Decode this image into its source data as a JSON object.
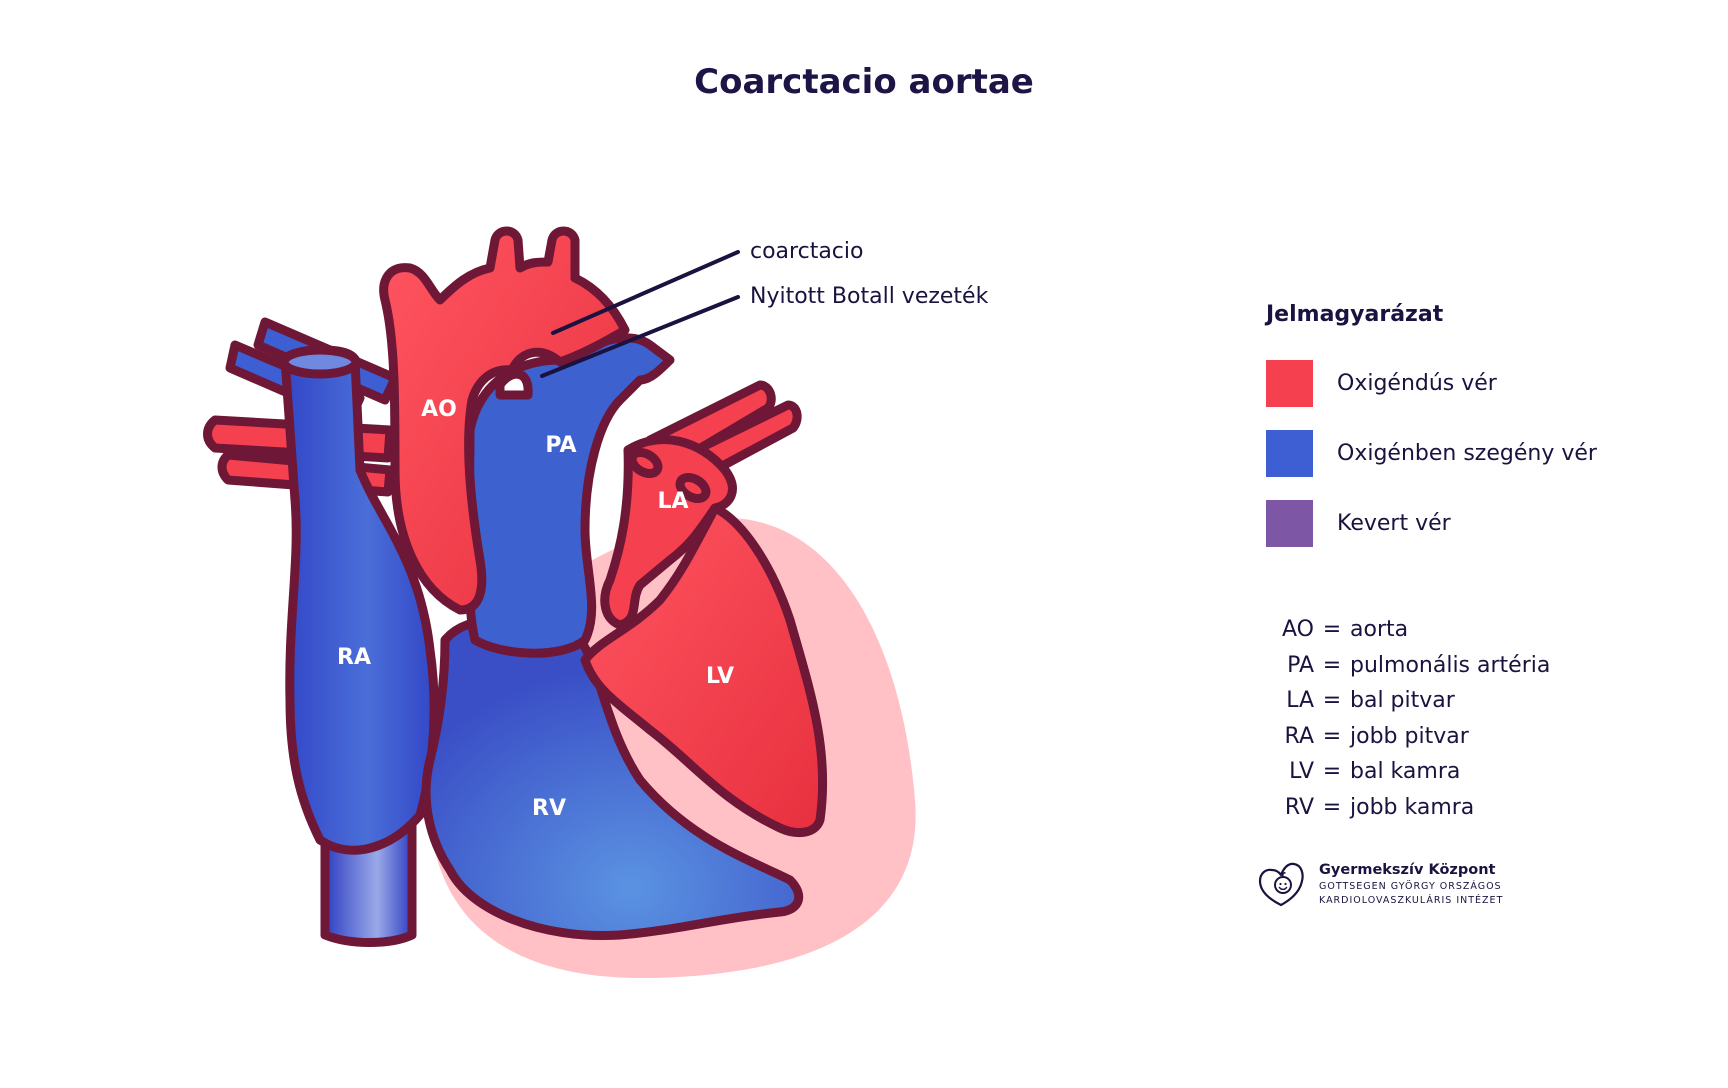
{
  "title": "Coarctacio aortae",
  "heart_labels": {
    "ao": "AO",
    "pa": "PA",
    "la": "LA",
    "ra": "RA",
    "lv": "LV",
    "rv": "RV"
  },
  "callouts": [
    {
      "label": "coarctacio"
    },
    {
      "label": "Nyitott Botall vezeték"
    }
  ],
  "legend": {
    "title": "Jelmagyarázat",
    "items": [
      {
        "label": "Oxigéndús vér",
        "color": "#f5404f"
      },
      {
        "label": "Oxigénben szegény vér",
        "color": "#3d5fd3"
      },
      {
        "label": "Kevert vér",
        "color": "#7d56a6"
      }
    ]
  },
  "abbreviations": [
    {
      "key": "AO",
      "value": "aorta"
    },
    {
      "key": "PA",
      "value": "pulmonális artéria"
    },
    {
      "key": "LA",
      "value": "bal pitvar"
    },
    {
      "key": "RA",
      "value": "jobb pitvar"
    },
    {
      "key": "LV",
      "value": "bal kamra"
    },
    {
      "key": "RV",
      "value": "jobb kamra"
    }
  ],
  "logo": {
    "icon": "heart-child-icon",
    "name": "Gyermekszív Központ",
    "line1": "GOTTSEGEN GYÖRGY ORSZÁGOS",
    "line2": "KARDIOLOVASZKULÁRIS INTÉZET"
  },
  "watermark": "Gyermekszív Központ GOTTSEGEN GYÖRGY ORSZÁGOS KARDIOLOVASZKULÁRIS INTÉZET",
  "colors": {
    "oxygenated": "#f5404f",
    "deoxygenated": "#3d5fd3",
    "mixed": "#7d56a6",
    "outline": "#6e1737",
    "pericardium": "#ffc1c6"
  }
}
